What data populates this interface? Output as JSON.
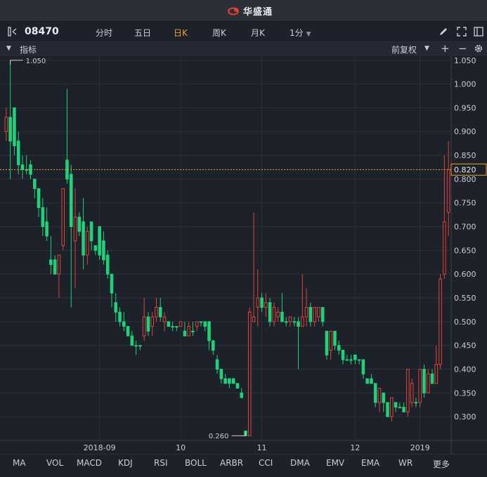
{
  "app": {
    "brand": "华盛通",
    "accent": "#e8402f"
  },
  "toolbar": {
    "symbol": "08470",
    "tabs": [
      "分时",
      "五日",
      "日K",
      "周K",
      "月K"
    ],
    "active_tab": "日K",
    "interval": "1分",
    "icons": [
      "pencil-icon",
      "fullscreen-icon",
      "split-screen-icon"
    ]
  },
  "indicator_bar": {
    "label": "指标",
    "adjust": "前复权",
    "buttons": [
      "+",
      "−"
    ]
  },
  "bottom_indicators": [
    "MA",
    "VOL",
    "MACD",
    "KDJ",
    "RSI",
    "BOLL",
    "ARBR",
    "CCI",
    "DMA",
    "EMV",
    "EMA",
    "WR",
    "更多"
  ],
  "colors": {
    "up": "#e0443a",
    "down": "#1fd17a",
    "grid": "#2b313c",
    "price_line": "#f0a030"
  },
  "chart_data": {
    "type": "candlestick",
    "ylim": [
      0.25,
      1.06
    ],
    "y_ticks": [
      "1.050",
      "1.000",
      "0.950",
      "0.900",
      "0.850",
      "0.800",
      "0.750",
      "0.700",
      "0.650",
      "0.600",
      "0.550",
      "0.500",
      "0.450",
      "0.400",
      "0.350",
      "0.300"
    ],
    "x_labels": [
      "2018-09",
      "10",
      "11",
      "12",
      "2019"
    ],
    "x_label_index": [
      23,
      43,
      63,
      86,
      102
    ],
    "current_price": "0.820",
    "max_label": "1.050",
    "min_label": "0.260",
    "candles": [
      [
        0.9,
        0.93,
        0.95,
        0.88
      ],
      [
        0.93,
        0.88,
        1.05,
        0.8
      ],
      [
        0.95,
        0.87,
        0.95,
        0.85
      ],
      [
        0.88,
        0.83,
        0.9,
        0.81
      ],
      [
        0.83,
        0.82,
        0.85,
        0.8
      ],
      [
        0.82,
        0.82,
        0.85,
        0.81
      ],
      [
        0.83,
        0.81,
        0.84,
        0.8
      ],
      [
        0.8,
        0.78,
        0.8,
        0.76
      ],
      [
        0.78,
        0.74,
        0.78,
        0.72
      ],
      [
        0.74,
        0.7,
        0.76,
        0.68
      ],
      [
        0.71,
        0.68,
        0.74,
        0.67
      ],
      [
        0.63,
        0.62,
        0.68,
        0.6
      ],
      [
        0.63,
        0.6,
        0.64,
        0.6
      ],
      [
        0.6,
        0.64,
        0.64,
        0.55
      ],
      [
        0.66,
        0.78,
        0.78,
        0.65
      ],
      [
        0.84,
        0.8,
        0.99,
        0.79
      ],
      [
        0.81,
        0.7,
        0.83,
        0.53
      ],
      [
        0.67,
        0.72,
        0.78,
        0.57
      ],
      [
        0.72,
        0.69,
        0.73,
        0.68
      ],
      [
        0.71,
        0.64,
        0.76,
        0.61
      ],
      [
        0.64,
        0.69,
        0.7,
        0.62
      ],
      [
        0.71,
        0.67,
        0.7,
        0.65
      ],
      [
        0.66,
        0.65,
        0.66,
        0.64
      ],
      [
        0.7,
        0.64,
        0.7,
        0.63
      ],
      [
        0.67,
        0.63,
        0.69,
        0.62
      ],
      [
        0.64,
        0.6,
        0.65,
        0.59
      ],
      [
        0.6,
        0.56,
        0.6,
        0.53
      ],
      [
        0.54,
        0.52,
        0.56,
        0.5
      ],
      [
        0.52,
        0.5,
        0.53,
        0.49
      ],
      [
        0.5,
        0.49,
        0.52,
        0.48
      ],
      [
        0.49,
        0.47,
        0.49,
        0.47
      ],
      [
        0.47,
        0.45,
        0.48,
        0.45
      ],
      [
        0.45,
        0.45,
        0.46,
        0.43
      ],
      [
        0.45,
        0.45,
        0.45,
        0.44
      ],
      [
        0.47,
        0.51,
        0.55,
        0.46
      ],
      [
        0.51,
        0.48,
        0.52,
        0.47
      ],
      [
        0.49,
        0.51,
        0.52,
        0.47
      ],
      [
        0.51,
        0.53,
        0.55,
        0.5
      ],
      [
        0.53,
        0.51,
        0.55,
        0.5
      ],
      [
        0.5,
        0.51,
        0.52,
        0.48
      ],
      [
        0.5,
        0.49,
        0.5,
        0.49
      ],
      [
        0.49,
        0.49,
        0.5,
        0.48
      ],
      [
        0.49,
        0.49,
        0.49,
        0.48
      ],
      [
        0.49,
        0.5,
        0.5,
        0.49
      ],
      [
        0.48,
        0.47,
        0.5,
        0.47
      ],
      [
        0.47,
        0.49,
        0.5,
        0.47
      ],
      [
        0.48,
        0.48,
        0.5,
        0.47
      ],
      [
        0.49,
        0.5,
        0.5,
        0.48
      ],
      [
        0.5,
        0.5,
        0.5,
        0.49
      ],
      [
        0.5,
        0.49,
        0.5,
        0.48
      ],
      [
        0.5,
        0.46,
        0.5,
        0.44
      ],
      [
        0.46,
        0.44,
        0.46,
        0.43
      ],
      [
        0.42,
        0.4,
        0.43,
        0.39
      ],
      [
        0.4,
        0.38,
        0.4,
        0.37
      ],
      [
        0.38,
        0.37,
        0.39,
        0.37
      ],
      [
        0.38,
        0.37,
        0.38,
        0.36
      ],
      [
        0.38,
        0.37,
        0.38,
        0.37
      ],
      [
        0.37,
        0.36,
        0.37,
        0.36
      ],
      [
        0.35,
        0.34,
        0.36,
        0.34
      ],
      [
        0.27,
        0.26,
        0.27,
        0.26
      ],
      [
        0.26,
        0.52,
        0.53,
        0.26
      ],
      [
        0.5,
        0.51,
        0.73,
        0.5
      ],
      [
        0.53,
        0.55,
        0.61,
        0.49
      ],
      [
        0.55,
        0.53,
        0.56,
        0.52
      ],
      [
        0.53,
        0.54,
        0.56,
        0.51
      ],
      [
        0.54,
        0.5,
        0.55,
        0.49
      ],
      [
        0.5,
        0.53,
        0.54,
        0.49
      ],
      [
        0.51,
        0.52,
        0.53,
        0.5
      ],
      [
        0.52,
        0.5,
        0.56,
        0.5
      ],
      [
        0.5,
        0.5,
        0.51,
        0.49
      ],
      [
        0.5,
        0.51,
        0.51,
        0.49
      ],
      [
        0.5,
        0.5,
        0.51,
        0.49
      ],
      [
        0.5,
        0.49,
        0.51,
        0.4
      ],
      [
        0.49,
        0.51,
        0.6,
        0.49
      ],
      [
        0.51,
        0.53,
        0.57,
        0.49
      ],
      [
        0.53,
        0.5,
        0.54,
        0.49
      ],
      [
        0.5,
        0.53,
        0.53,
        0.49
      ],
      [
        0.51,
        0.53,
        0.53,
        0.5
      ],
      [
        0.53,
        0.5,
        0.53,
        0.49
      ],
      [
        0.48,
        0.43,
        0.48,
        0.42
      ],
      [
        0.44,
        0.48,
        0.48,
        0.42
      ],
      [
        0.48,
        0.45,
        0.48,
        0.44
      ],
      [
        0.45,
        0.44,
        0.46,
        0.43
      ],
      [
        0.44,
        0.42,
        0.44,
        0.41
      ],
      [
        0.42,
        0.42,
        0.43,
        0.42
      ],
      [
        0.42,
        0.42,
        0.43,
        0.41
      ],
      [
        0.43,
        0.42,
        0.43,
        0.41
      ],
      [
        0.42,
        0.42,
        0.42,
        0.41
      ],
      [
        0.42,
        0.39,
        0.42,
        0.38
      ],
      [
        0.38,
        0.37,
        0.38,
        0.37
      ],
      [
        0.38,
        0.37,
        0.39,
        0.37
      ],
      [
        0.37,
        0.33,
        0.37,
        0.32
      ],
      [
        0.33,
        0.36,
        0.36,
        0.31
      ],
      [
        0.35,
        0.33,
        0.35,
        0.31
      ],
      [
        0.33,
        0.3,
        0.33,
        0.3
      ],
      [
        0.3,
        0.34,
        0.34,
        0.29
      ],
      [
        0.33,
        0.32,
        0.33,
        0.31
      ],
      [
        0.32,
        0.32,
        0.33,
        0.32
      ],
      [
        0.32,
        0.31,
        0.33,
        0.31
      ],
      [
        0.31,
        0.4,
        0.4,
        0.3
      ],
      [
        0.33,
        0.37,
        0.38,
        0.32
      ],
      [
        0.33,
        0.33,
        0.34,
        0.32
      ],
      [
        0.33,
        0.4,
        0.4,
        0.32
      ],
      [
        0.4,
        0.35,
        0.41,
        0.34
      ],
      [
        0.35,
        0.39,
        0.4,
        0.35
      ],
      [
        0.39,
        0.37,
        0.4,
        0.37
      ],
      [
        0.37,
        0.41,
        0.45,
        0.37
      ],
      [
        0.41,
        0.59,
        0.6,
        0.4
      ],
      [
        0.6,
        0.71,
        0.85,
        0.59
      ],
      [
        0.73,
        0.82,
        0.88,
        0.68
      ]
    ]
  }
}
